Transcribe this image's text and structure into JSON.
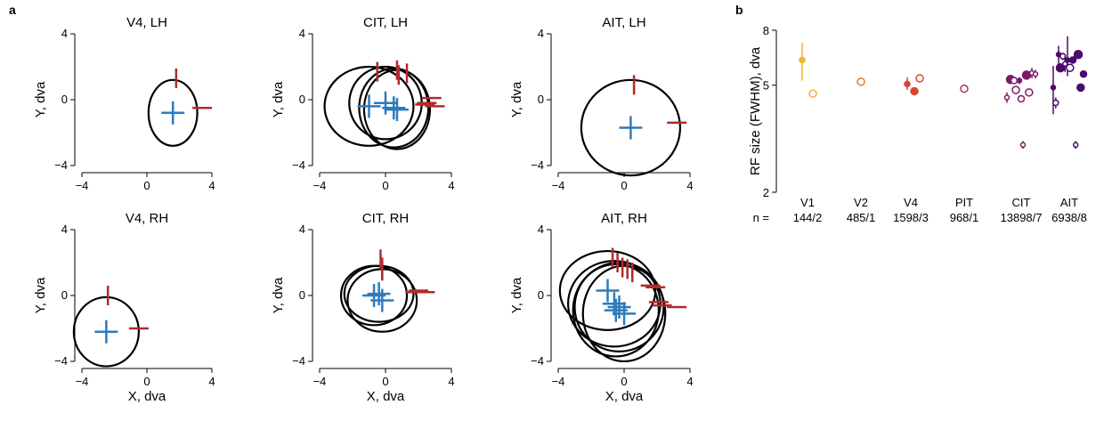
{
  "panel_labels": {
    "a": "a",
    "b": "b"
  },
  "colors": {
    "center": "#2d7bbd",
    "edge": "#b22a2a",
    "circle": "#000000",
    "V1": "#f0b43a",
    "V2": "#e07a2a",
    "V4": "#d9452a",
    "PIT": "#a03a5a",
    "CIT": "#7a1a6a",
    "AIT": "#4a0a6a"
  },
  "chart_data": [
    {
      "type": "scatter",
      "title": "V4, LH",
      "xlabel": "",
      "ylabel": "Y, dva",
      "xlim": [
        -4,
        4
      ],
      "ylim": [
        -4,
        4
      ],
      "xticks": [
        "−4",
        "0",
        "4"
      ],
      "yticks": [
        "−4",
        "0",
        "4"
      ],
      "rfs": [
        {
          "cx": 1.6,
          "cy": -0.8,
          "rx": 1.5,
          "ry": 2.0,
          "ex": 3.4,
          "ey": -0.5,
          "tx": 1.8,
          "ty": 1.3
        }
      ]
    },
    {
      "type": "scatter",
      "title": "CIT, LH",
      "xlabel": "",
      "ylabel": "Y, dva",
      "xlim": [
        -4,
        4
      ],
      "ylim": [
        -4,
        4
      ],
      "xticks": [
        "−4",
        "0",
        "4"
      ],
      "yticks": [
        "−4",
        "0",
        "4"
      ],
      "rfs": [
        {
          "cx": -1.0,
          "cy": -0.4,
          "rx": 2.7,
          "ry": 2.4,
          "ex": 2.8,
          "ey": 0.1,
          "tx": -0.5,
          "ty": 1.7
        },
        {
          "cx": 0.5,
          "cy": -0.5,
          "rx": 2.1,
          "ry": 2.4,
          "ex": 2.4,
          "ey": -0.3,
          "tx": 1.3,
          "ty": 1.6
        },
        {
          "cx": 0.0,
          "cy": -0.2,
          "rx": 2.2,
          "ry": 2.2,
          "ex": 3.0,
          "ey": -0.4,
          "tx": 0.7,
          "ty": 1.8
        },
        {
          "cx": 0.7,
          "cy": -0.6,
          "rx": 2.0,
          "ry": 2.4,
          "ex": 2.5,
          "ey": -0.2,
          "tx": 0.8,
          "ty": 1.5
        }
      ]
    },
    {
      "type": "scatter",
      "title": "AIT, LH",
      "xlabel": "",
      "ylabel": "Y, dva",
      "xlim": [
        -4,
        4
      ],
      "ylim": [
        -4,
        4
      ],
      "xticks": [
        "−4",
        "0",
        "4"
      ],
      "yticks": [
        "−4",
        "0",
        "4"
      ],
      "rfs": [
        {
          "cx": 0.4,
          "cy": -1.7,
          "rx": 3.0,
          "ry": 2.9,
          "ex": 3.2,
          "ey": -1.4,
          "tx": 0.6,
          "ty": 0.9
        }
      ]
    },
    {
      "type": "scatter",
      "title": "V4, RH",
      "xlabel": "X, dva",
      "ylabel": "Y, dva",
      "xlim": [
        -4,
        4
      ],
      "ylim": [
        -4,
        4
      ],
      "xticks": [
        "−4",
        "0",
        "4"
      ],
      "yticks": [
        "−4",
        "0",
        "4"
      ],
      "rfs": [
        {
          "cx": -2.5,
          "cy": -2.2,
          "rx": 2.0,
          "ry": 2.1,
          "ex": -0.5,
          "ey": -2.0,
          "tx": -2.4,
          "ty": 0.0
        }
      ]
    },
    {
      "type": "scatter",
      "title": "CIT, RH",
      "xlabel": "X, dva",
      "ylabel": "Y, dva",
      "xlim": [
        -4,
        4
      ],
      "ylim": [
        -4,
        4
      ],
      "xticks": [
        "−4",
        "0",
        "4"
      ],
      "yticks": [
        "−4",
        "0",
        "4"
      ],
      "rfs": [
        {
          "cx": -0.4,
          "cy": 0.1,
          "rx": 2.1,
          "ry": 1.7,
          "ex": 1.8,
          "ey": 0.2,
          "tx": -0.2,
          "ty": 1.7
        },
        {
          "cx": -0.7,
          "cy": 0.0,
          "rx": 2.0,
          "ry": 1.8,
          "ex": 2.0,
          "ey": 0.3,
          "tx": -0.3,
          "ty": 2.2
        },
        {
          "cx": -0.2,
          "cy": -0.3,
          "rx": 2.1,
          "ry": 1.9,
          "ex": 2.4,
          "ey": 0.2,
          "tx": -0.2,
          "ty": 1.5
        }
      ]
    },
    {
      "type": "scatter",
      "title": "AIT, RH",
      "xlabel": "X, dva",
      "ylabel": "Y, dva",
      "xlim": [
        -4,
        4
      ],
      "ylim": [
        -4,
        4
      ],
      "xticks": [
        "−4",
        "0",
        "4"
      ],
      "yticks": [
        "−4",
        "0",
        "4"
      ],
      "rfs": [
        {
          "cx": -1.0,
          "cy": 0.3,
          "rx": 2.9,
          "ry": 2.4,
          "ex": 1.6,
          "ey": 0.6,
          "tx": -0.7,
          "ty": 2.3
        },
        {
          "cx": -0.6,
          "cy": -0.5,
          "rx": 2.8,
          "ry": 2.6,
          "ex": 1.9,
          "ey": 0.5,
          "tx": -0.4,
          "ty": 2.0
        },
        {
          "cx": -0.5,
          "cy": -0.9,
          "rx": 2.6,
          "ry": 2.8,
          "ex": 2.1,
          "ey": -0.4,
          "tx": -0.1,
          "ty": 1.7
        },
        {
          "cx": 0.0,
          "cy": -1.1,
          "rx": 2.5,
          "ry": 2.9,
          "ex": 3.2,
          "ey": -0.7,
          "tx": 0.2,
          "ty": 1.6
        },
        {
          "cx": -0.3,
          "cy": -0.7,
          "rx": 2.7,
          "ry": 2.7,
          "ex": 2.3,
          "ey": -0.6,
          "tx": 0.5,
          "ty": 1.4
        }
      ]
    },
    {
      "type": "scatter",
      "title": "",
      "xlabel": "",
      "ylabel": "RF size (FWHM), dva",
      "ylog": true,
      "ylim": [
        2,
        8
      ],
      "yticks": [
        "2",
        "5",
        "8"
      ],
      "categories": [
        "V1",
        "V2",
        "V4",
        "PIT",
        "CIT",
        "AIT"
      ],
      "counts": [
        "144/2",
        "485/1",
        "1598/3",
        "968/1",
        "13898/7",
        "6938/8"
      ],
      "n_prefix": "n = ",
      "points": [
        {
          "area": "V1",
          "x": -0.15,
          "y": 6.2,
          "lo": 5.2,
          "hi": 7.2,
          "size": 4,
          "filled": true
        },
        {
          "area": "V1",
          "x": 0.15,
          "y": 4.65,
          "lo": 4.5,
          "hi": 4.8,
          "size": 6,
          "filled": false
        },
        {
          "area": "V2",
          "x": 0.0,
          "y": 5.15,
          "lo": 5.0,
          "hi": 5.3,
          "size": 6,
          "filled": false
        },
        {
          "area": "V4",
          "x": -0.1,
          "y": 5.05,
          "lo": 4.8,
          "hi": 5.35,
          "size": 4,
          "filled": true
        },
        {
          "area": "V4",
          "x": 0.1,
          "y": 4.75,
          "lo": 4.75,
          "hi": 4.75,
          "size": 6,
          "filled": true
        },
        {
          "area": "V4",
          "x": 0.25,
          "y": 5.3,
          "lo": 5.3,
          "hi": 5.3,
          "size": 6,
          "filled": false
        },
        {
          "area": "PIT",
          "x": 0.0,
          "y": 4.85,
          "lo": 4.85,
          "hi": 4.85,
          "size": 6,
          "filled": false
        },
        {
          "area": "CIT",
          "x": -0.4,
          "y": 4.5,
          "lo": 4.3,
          "hi": 4.7,
          "size": 3,
          "filled": false
        },
        {
          "area": "CIT",
          "x": -0.3,
          "y": 5.25,
          "lo": 5.25,
          "hi": 5.25,
          "size": 7,
          "filled": true
        },
        {
          "area": "CIT",
          "x": -0.2,
          "y": 5.2,
          "lo": 5.2,
          "hi": 5.2,
          "size": 5,
          "filled": false
        },
        {
          "area": "CIT",
          "x": -0.15,
          "y": 4.8,
          "lo": 4.8,
          "hi": 4.8,
          "size": 6,
          "filled": false
        },
        {
          "area": "CIT",
          "x": -0.05,
          "y": 5.2,
          "lo": 5.05,
          "hi": 5.35,
          "size": 3,
          "filled": true
        },
        {
          "area": "CIT",
          "x": 0.0,
          "y": 4.45,
          "lo": 4.45,
          "hi": 4.45,
          "size": 5,
          "filled": false
        },
        {
          "area": "CIT",
          "x": 0.05,
          "y": 3.0,
          "lo": 2.9,
          "hi": 3.1,
          "size": 3,
          "filled": false
        },
        {
          "area": "CIT",
          "x": 0.15,
          "y": 5.45,
          "lo": 5.45,
          "hi": 5.45,
          "size": 7,
          "filled": true
        },
        {
          "area": "CIT",
          "x": 0.22,
          "y": 4.7,
          "lo": 4.7,
          "hi": 4.7,
          "size": 6,
          "filled": false
        },
        {
          "area": "CIT",
          "x": 0.3,
          "y": 5.55,
          "lo": 5.3,
          "hi": 5.8,
          "size": 3,
          "filled": false
        },
        {
          "area": "CIT",
          "x": 0.4,
          "y": 5.5,
          "lo": 5.3,
          "hi": 5.7,
          "size": 3,
          "filled": false
        },
        {
          "area": "AIT",
          "x": -0.45,
          "y": 4.9,
          "lo": 3.9,
          "hi": 5.9,
          "size": 3,
          "filled": true
        },
        {
          "area": "AIT",
          "x": -0.38,
          "y": 4.3,
          "lo": 4.1,
          "hi": 4.5,
          "size": 4,
          "filled": false
        },
        {
          "area": "AIT",
          "x": -0.3,
          "y": 6.5,
          "lo": 6.0,
          "hi": 7.0,
          "size": 3,
          "filled": true
        },
        {
          "area": "AIT",
          "x": -0.25,
          "y": 5.8,
          "lo": 5.8,
          "hi": 5.8,
          "size": 7,
          "filled": true
        },
        {
          "area": "AIT",
          "x": -0.18,
          "y": 6.4,
          "lo": 6.2,
          "hi": 6.6,
          "size": 4,
          "filled": false
        },
        {
          "area": "AIT",
          "x": -0.12,
          "y": 6.0,
          "lo": 5.6,
          "hi": 6.4,
          "size": 3,
          "filled": false
        },
        {
          "area": "AIT",
          "x": -0.05,
          "y": 6.2,
          "lo": 5.4,
          "hi": 7.6,
          "size": 3,
          "filled": true
        },
        {
          "area": "AIT",
          "x": 0.02,
          "y": 5.8,
          "lo": 5.8,
          "hi": 5.8,
          "size": 6,
          "filled": false
        },
        {
          "area": "AIT",
          "x": 0.1,
          "y": 6.2,
          "lo": 6.2,
          "hi": 6.2,
          "size": 5,
          "filled": true
        },
        {
          "area": "AIT",
          "x": 0.18,
          "y": 3.0,
          "lo": 2.9,
          "hi": 3.1,
          "size": 3,
          "filled": false
        },
        {
          "area": "AIT",
          "x": 0.25,
          "y": 6.5,
          "lo": 6.5,
          "hi": 6.5,
          "size": 7,
          "filled": true
        },
        {
          "area": "AIT",
          "x": 0.32,
          "y": 4.9,
          "lo": 4.9,
          "hi": 4.9,
          "size": 6,
          "filled": true
        },
        {
          "area": "AIT",
          "x": 0.4,
          "y": 5.5,
          "lo": 5.5,
          "hi": 5.5,
          "size": 5,
          "filled": true
        }
      ]
    }
  ]
}
